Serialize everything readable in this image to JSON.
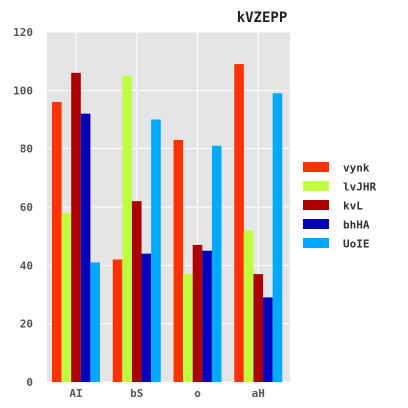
{
  "chart_data": {
    "type": "bar",
    "title": "kVZEPP",
    "xlabel": "",
    "ylabel": "",
    "categories": [
      "AI",
      "bS",
      "o",
      "aH"
    ],
    "ylim": [
      0,
      120
    ],
    "yticks": [
      0,
      20,
      40,
      60,
      80,
      100,
      120
    ],
    "grid": true,
    "legend_position": "right",
    "series": [
      {
        "name": "vynk",
        "color": "#ff3300",
        "values": [
          96,
          42,
          83,
          109
        ]
      },
      {
        "name": "lvJHR",
        "color": "#bfff40",
        "values": [
          58,
          105,
          37,
          52
        ]
      },
      {
        "name": "kvL",
        "color": "#aa0000",
        "values": [
          106,
          62,
          47,
          37
        ]
      },
      {
        "name": "bhHA",
        "color": "#0000bb",
        "values": [
          92,
          44,
          45,
          29
        ]
      },
      {
        "name": "UoIE",
        "color": "#00aaff",
        "values": [
          41,
          90,
          81,
          99
        ]
      }
    ]
  }
}
